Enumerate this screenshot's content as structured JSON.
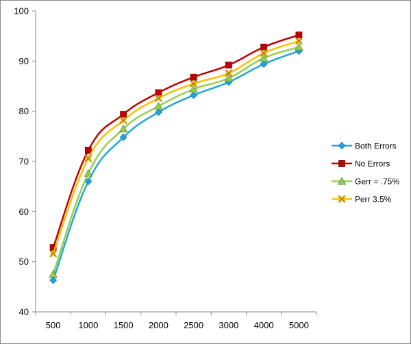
{
  "chart_data": {
    "type": "line",
    "title": "",
    "xlabel": "",
    "ylabel": "",
    "categories": [
      "500",
      "1000",
      "1500",
      "2000",
      "2500",
      "3000",
      "4000",
      "5000"
    ],
    "ylim": [
      40,
      100
    ],
    "yticks": [
      40,
      50,
      60,
      70,
      80,
      90,
      100
    ],
    "grid": false,
    "smooth": true,
    "legend_position": "right",
    "series": [
      {
        "name": "Both Errors",
        "color": "#1fa6d8",
        "marker": "diamond",
        "values": [
          46.3,
          66.0,
          74.8,
          79.8,
          83.2,
          85.8,
          89.4,
          92.0
        ]
      },
      {
        "name": "No Errors",
        "color": "#c00000",
        "marker": "square",
        "values": [
          52.8,
          72.2,
          79.4,
          83.7,
          86.8,
          89.2,
          92.8,
          95.2
        ]
      },
      {
        "name": "Gerr = .75%",
        "color": "#92d050",
        "marker": "triangle",
        "values": [
          47.5,
          67.6,
          76.5,
          81.0,
          84.4,
          86.6,
          90.6,
          92.8
        ]
      },
      {
        "name": "Perr 3.5%",
        "color": "#ffc000",
        "marker": "x",
        "values": [
          51.6,
          70.6,
          78.2,
          82.6,
          85.5,
          87.6,
          91.6,
          94.0
        ]
      }
    ]
  }
}
